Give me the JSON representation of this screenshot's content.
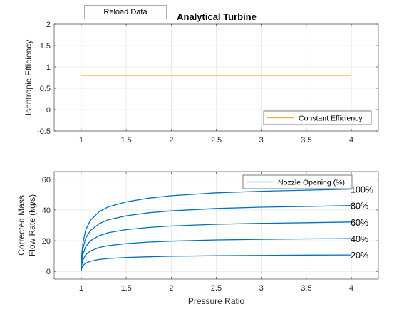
{
  "reload_button": {
    "label": "Reload Data"
  },
  "chart_data": [
    {
      "type": "line",
      "title": "Analytical Turbine",
      "xlabel": "",
      "ylabel": "Isentropic Efficiency",
      "xlim": [
        0.7,
        4.3
      ],
      "ylim": [
        -0.5,
        2
      ],
      "xticks": [
        1,
        1.5,
        2,
        2.5,
        3,
        3.5,
        4
      ],
      "yticks": [
        -0.5,
        0,
        0.5,
        1,
        1.5,
        2
      ],
      "grid": true,
      "legend": "bottom-right",
      "series": [
        {
          "name": "Constant Efficiency",
          "color": "#EDB120",
          "x": [
            1,
            4
          ],
          "y": [
            0.8,
            0.8
          ]
        }
      ]
    },
    {
      "type": "line",
      "title": "",
      "xlabel": "Pressure Ratio",
      "ylabel": [
        "Corrected Mass",
        "Flow Rate (kg/s)"
      ],
      "xlim": [
        0.7,
        4.3
      ],
      "ylim": [
        -5,
        65
      ],
      "xticks": [
        1,
        1.5,
        2,
        2.5,
        3,
        3.5,
        4
      ],
      "yticks": [
        0,
        20,
        40,
        60
      ],
      "grid": true,
      "legend": "top-right",
      "legend_entry": "Nozzle Opening (%)",
      "line_color": "#0072BD",
      "x": [
        1,
        1.005,
        1.02,
        1.05,
        1.1,
        1.2,
        1.3,
        1.5,
        1.75,
        2,
        2.5,
        3,
        3.5,
        4
      ],
      "series": [
        {
          "label": "100%",
          "y": [
            0.5,
            9.5,
            18.6,
            26.9,
            33.1,
            38.9,
            42.0,
            45.3,
            47.7,
            49.3,
            51.2,
            52.2,
            52.9,
            53.6
          ]
        },
        {
          "label": "80%",
          "y": [
            0.4,
            7.6,
            14.9,
            21.5,
            26.5,
            31.1,
            33.6,
            36.2,
            38.2,
            39.4,
            41.0,
            41.8,
            42.3,
            42.9
          ]
        },
        {
          "label": "60%",
          "y": [
            0.3,
            5.7,
            11.2,
            16.1,
            19.9,
            23.3,
            25.2,
            27.2,
            28.6,
            29.6,
            30.7,
            31.3,
            31.7,
            32.2
          ]
        },
        {
          "label": "40%",
          "y": [
            0.2,
            3.8,
            7.4,
            10.8,
            13.2,
            15.6,
            16.8,
            18.1,
            19.1,
            19.7,
            20.5,
            20.9,
            21.2,
            21.4
          ]
        },
        {
          "label": "20%",
          "y": [
            0.1,
            1.9,
            3.7,
            5.4,
            6.6,
            7.8,
            8.4,
            9.1,
            9.5,
            9.9,
            10.2,
            10.4,
            10.6,
            10.7
          ]
        }
      ]
    }
  ]
}
